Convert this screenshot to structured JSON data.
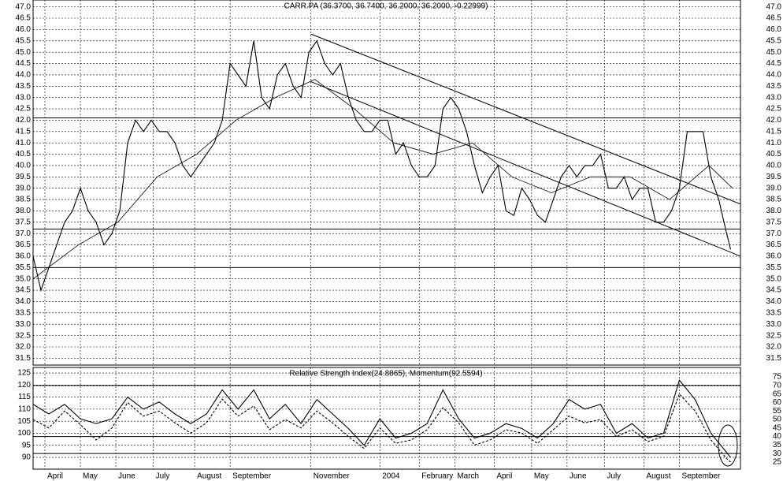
{
  "chart_data": [
    {
      "type": "line",
      "title": "CARR.PA (36.3700, 36.7400, 36.2000, 36.2000, -0.22999)",
      "xlim": [
        0,
        359
      ],
      "ylim": [
        31.2,
        47.3
      ],
      "yticks": [
        31.5,
        {
          "value": 32,
          "label": "32.0"
        },
        32.5,
        {
          "value": 33,
          "label": "33.0"
        },
        33.5,
        {
          "value": 34,
          "label": "34.0"
        },
        34.5,
        {
          "value": 35,
          "label": "35.0"
        },
        35.5,
        {
          "value": 36,
          "label": "36.0"
        },
        36.5,
        {
          "value": 37,
          "label": "37.0"
        },
        37.5,
        {
          "value": 38,
          "label": "38.0"
        },
        38.5,
        {
          "value": 39,
          "label": "39.0"
        },
        39.5,
        {
          "value": 40,
          "label": "40.0"
        },
        40.5,
        {
          "value": 41,
          "label": "41.0"
        },
        41.5,
        {
          "value": 42,
          "label": "42.0"
        },
        42.5,
        {
          "value": 43,
          "label": "43.0"
        },
        43.5,
        {
          "value": 44,
          "label": "44.0"
        },
        44.5,
        {
          "value": 45,
          "label": "45.0"
        },
        45.5,
        {
          "value": 46,
          "label": "46.0"
        },
        46.5,
        {
          "value": 47,
          "label": "47.0"
        }
      ],
      "grid": true,
      "series": [
        {
          "color": "#000000",
          "style": "solid",
          "x": [
            0,
            4,
            8,
            12,
            16,
            20,
            24,
            28,
            32,
            36,
            40,
            44,
            48,
            52,
            56,
            60,
            64,
            68,
            72,
            76,
            80,
            84,
            88,
            92,
            96,
            100,
            104,
            108,
            112,
            116,
            120,
            124,
            128,
            132,
            136,
            140,
            144,
            148,
            152,
            156,
            160,
            164,
            168,
            172,
            176,
            180,
            184,
            188,
            192,
            196,
            200,
            204,
            208,
            212,
            216,
            220,
            224,
            228,
            232,
            236,
            240,
            244,
            248,
            252,
            256,
            260,
            264,
            268,
            272,
            276,
            280,
            284,
            288,
            292,
            296,
            300,
            304,
            308,
            312,
            316,
            320,
            324,
            328,
            332,
            336,
            340,
            344,
            348,
            352,
            354
          ],
          "values": [
            36,
            34.5,
            35.5,
            36.5,
            37.5,
            38,
            39,
            38,
            37.5,
            36.5,
            37,
            38,
            41,
            42,
            41.5,
            42,
            41.5,
            41.5,
            41,
            40,
            39.5,
            40,
            40.5,
            41,
            42,
            44.5,
            44,
            43.5,
            45.5,
            43,
            42.5,
            44,
            44.5,
            43.5,
            43,
            45,
            45.5,
            44.5,
            44,
            44.5,
            43,
            42,
            41.5,
            41.5,
            42,
            42,
            40.5,
            41,
            40,
            39.5,
            39.5,
            40,
            42.5,
            43,
            42.5,
            41.5,
            40,
            38.8,
            39.5,
            40,
            38,
            37.8,
            39,
            38.5,
            37.8,
            37.5,
            38.5,
            39.5,
            40,
            39.5,
            40,
            40,
            40.5,
            39,
            39,
            39.5,
            38.5,
            39,
            39,
            37.5,
            37.5,
            38,
            39,
            41.5,
            41.5,
            41.5,
            39.5,
            38.5,
            37,
            36.3
          ]
        },
        {
          "color": "#000000",
          "style": "thin",
          "x": [
            0,
            23,
            43,
            63,
            83,
            103,
            123,
            143,
            163,
            183,
            203,
            223,
            243,
            263,
            283,
            303,
            323,
            343,
            355
          ],
          "values": [
            35,
            36.5,
            37.5,
            39.5,
            40.5,
            42,
            43,
            43.8,
            42.5,
            41,
            40.5,
            41,
            39.5,
            38.8,
            39.5,
            39.5,
            38.5,
            40,
            39
          ]
        }
      ],
      "hlines": [
        42.1,
        37.2,
        35.5
      ],
      "trendlines": [
        {
          "x": [
            141,
            359
          ],
          "values": [
            45.8,
            38.3
          ]
        },
        {
          "x": [
            141,
            359
          ],
          "values": [
            43.7,
            36.0
          ]
        }
      ]
    },
    {
      "type": "line",
      "title": "Relative Strength Index(24.8865), Momentum(92.5594)",
      "xlim": [
        0,
        359
      ],
      "xticks": [
        {
          "value": 6,
          "label": "April"
        },
        {
          "value": 24,
          "label": "May"
        },
        {
          "value": 42,
          "label": "June"
        },
        {
          "value": 61,
          "label": "July"
        },
        {
          "value": 82,
          "label": "August"
        },
        {
          "value": 100,
          "label": "September"
        },
        {
          "value": 141,
          "label": "November"
        },
        {
          "value": 176,
          "label": "2004"
        },
        {
          "value": 196,
          "label": "February"
        },
        {
          "value": 214,
          "label": "March"
        },
        {
          "value": 234,
          "label": "April"
        },
        {
          "value": 253,
          "label": "May"
        },
        {
          "value": 271,
          "label": "June"
        },
        {
          "value": 290,
          "label": "July"
        },
        {
          "value": 310,
          "label": "August"
        },
        {
          "value": 328,
          "label": "September"
        }
      ],
      "ylim": [
        85.1,
        127.3
      ],
      "yticks": [
        90,
        95,
        100,
        105,
        110,
        115,
        120,
        125
      ],
      "y2lim": [
        20.8,
        80.6
      ],
      "y2ticks": [
        25,
        30,
        35,
        40,
        45,
        50,
        55,
        60,
        65,
        70,
        75
      ],
      "grid": true,
      "series": [
        {
          "color": "#000000",
          "style": "solid",
          "x": [
            0,
            8,
            16,
            24,
            32,
            40,
            48,
            56,
            64,
            72,
            80,
            88,
            96,
            104,
            112,
            120,
            128,
            136,
            144,
            152,
            160,
            168,
            176,
            184,
            192,
            200,
            208,
            216,
            224,
            232,
            240,
            248,
            256,
            264,
            272,
            280,
            288,
            296,
            304,
            312,
            320,
            328,
            336,
            344,
            352,
            354
          ],
          "values": [
            112,
            108,
            112,
            106,
            104,
            106,
            115,
            110,
            113,
            108,
            104,
            108,
            118,
            110,
            118,
            106,
            112,
            104,
            114,
            108,
            102,
            95,
            106,
            98,
            100,
            104,
            118,
            106,
            98,
            100,
            104,
            102,
            98,
            104,
            114,
            110,
            112,
            100,
            104,
            98,
            100,
            122,
            114,
            100,
            92,
            90
          ]
        },
        {
          "color": "#000000",
          "style": "dashed",
          "axis": "y2",
          "x": [
            0,
            8,
            16,
            24,
            32,
            40,
            48,
            56,
            64,
            72,
            80,
            88,
            96,
            104,
            112,
            120,
            128,
            136,
            144,
            152,
            160,
            168,
            176,
            184,
            192,
            200,
            208,
            216,
            224,
            232,
            240,
            248,
            256,
            264,
            272,
            280,
            288,
            296,
            304,
            312,
            320,
            328,
            336,
            344,
            352,
            354
          ],
          "values": [
            50,
            45,
            55,
            47,
            38,
            45,
            60,
            52,
            55,
            48,
            42,
            48,
            62,
            52,
            58,
            44,
            50,
            45,
            55,
            48,
            40,
            33,
            45,
            36,
            38,
            44,
            57,
            48,
            35,
            38,
            44,
            42,
            36,
            44,
            52,
            48,
            50,
            40,
            44,
            37,
            40,
            65,
            55,
            38,
            27,
            25
          ]
        }
      ],
      "y2hlines": [
        70,
        40,
        30
      ]
    }
  ]
}
